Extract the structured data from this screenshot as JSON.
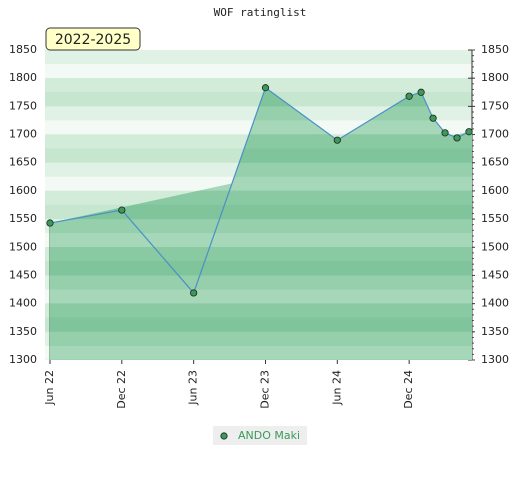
{
  "chart_data": {
    "type": "area",
    "title": "WOF ratinglist",
    "badge": "2022-2025",
    "x": [
      "2022-06",
      "2022-12",
      "2023-06",
      "2023-12",
      "2024-06",
      "2024-12",
      "2025-01",
      "2025-02",
      "2025-03",
      "2025-04",
      "2025-05"
    ],
    "series": [
      {
        "name": "ANDO Maki",
        "color": "#3a9a5a",
        "values": [
          1543,
          1566,
          1419,
          1783,
          1690,
          1768,
          1775,
          1729,
          1703,
          1694,
          1705
        ]
      }
    ],
    "xlim": [
      "2022-06",
      "2025-05"
    ],
    "xticks": [
      {
        "value": "2022-06",
        "label": "Jun 22"
      },
      {
        "value": "2022-12",
        "label": "Dec 22"
      },
      {
        "value": "2023-06",
        "label": "Jun 23"
      },
      {
        "value": "2023-12",
        "label": "Dec 23"
      },
      {
        "value": "2024-06",
        "label": "Jun 24"
      },
      {
        "value": "2024-12",
        "label": "Dec 24"
      }
    ],
    "ylim": [
      1300,
      1850
    ],
    "yticks": [
      1300,
      1350,
      1400,
      1450,
      1500,
      1550,
      1600,
      1650,
      1700,
      1750,
      1800,
      1850
    ],
    "legend": "bottom"
  }
}
